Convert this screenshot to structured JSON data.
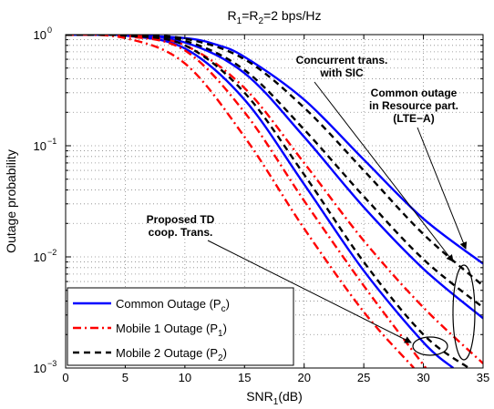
{
  "chart_data": {
    "type": "line",
    "title": "R1=R2=2 bps/Hz",
    "xlabel": "SNR1(dB)",
    "ylabel": "Outage probability",
    "xlim": [
      0,
      35
    ],
    "ylim": [
      0.001,
      1
    ],
    "yscale": "log",
    "grid": true,
    "x_ticks": [
      "0",
      "5",
      "10",
      "15",
      "20",
      "25",
      "30",
      "35"
    ],
    "y_ticks": [
      {
        "base": "10",
        "exp": "0"
      },
      {
        "base": "10",
        "exp": "−1"
      },
      {
        "base": "10",
        "exp": "−2"
      },
      {
        "base": "10",
        "exp": "−3"
      }
    ],
    "legend": {
      "placement": "bottom-left",
      "entries": [
        {
          "text": "Common Outage (P",
          "sub": "c",
          "close": ")",
          "color": "#0000ff",
          "dash": "solid"
        },
        {
          "text": "Mobile 1 Outage (P",
          "sub": "1",
          "close": ")",
          "color": "#ff0000",
          "dash": "dashdot"
        },
        {
          "text": "Mobile 2 Outage (P",
          "sub": "2",
          "close": ")",
          "color": "#000000",
          "dash": "dashed"
        }
      ]
    },
    "annotations": [
      {
        "lines": [
          "Concurrent trans.",
          "with SIC"
        ]
      },
      {
        "lines": [
          "Common outage",
          "in Resource part.",
          "(LTE−A)"
        ]
      },
      {
        "lines": [
          "Proposed TD",
          "coop. Trans."
        ]
      }
    ],
    "series": [
      {
        "group": "Common Outage",
        "scheme": "LTE-A resource partition",
        "color": "#0000ff",
        "dash": "solid",
        "x": [
          0,
          5,
          10,
          12.5,
          15,
          20,
          25,
          30,
          35
        ],
        "y": [
          1,
          0.99,
          0.93,
          0.82,
          0.63,
          0.26,
          0.075,
          0.022,
          0.0087
        ]
      },
      {
        "group": "Common Outage",
        "scheme": "Concurrent trans. with SIC",
        "color": "#0000ff",
        "dash": "solid",
        "x": [
          0,
          5,
          10,
          15,
          20,
          25,
          30,
          35
        ],
        "y": [
          1,
          0.99,
          0.85,
          0.45,
          0.12,
          0.028,
          0.0078,
          0.0028
        ]
      },
      {
        "group": "Common Outage",
        "scheme": "Proposed TD coop. Trans.",
        "color": "#0000ff",
        "dash": "solid",
        "x": [
          0,
          5,
          10,
          15,
          20,
          25,
          30,
          32.5
        ],
        "y": [
          1,
          0.98,
          0.75,
          0.26,
          0.045,
          0.0075,
          0.0017,
          0.001
        ]
      },
      {
        "group": "Mobile 1 Outage",
        "scheme": "Proposed TD coop. Trans.",
        "color": "#ff0000",
        "dash": "dashdot",
        "x": [
          0,
          5,
          10,
          15,
          20,
          25,
          29.2
        ],
        "y": [
          1,
          0.93,
          0.55,
          0.12,
          0.018,
          0.0032,
          0.001
        ]
      },
      {
        "group": "Mobile 1 Outage",
        "scheme": "Proposed TD coop. Trans. (2)",
        "color": "#ff0000",
        "dash": "dashdot",
        "x": [
          0,
          5,
          10,
          15,
          20,
          25,
          30.2
        ],
        "y": [
          1,
          0.97,
          0.72,
          0.2,
          0.032,
          0.0055,
          0.001
        ]
      },
      {
        "group": "Mobile 1 Outage",
        "scheme": "Concurrent trans. with SIC",
        "color": "#ff0000",
        "dash": "dashdot",
        "x": [
          0,
          5,
          10,
          15,
          20,
          25,
          30,
          35
        ],
        "y": [
          1,
          0.99,
          0.8,
          0.33,
          0.07,
          0.014,
          0.0035,
          0.0011
        ]
      },
      {
        "group": "Mobile 2 Outage",
        "scheme": "Proposed TD coop. Trans.",
        "color": "#000000",
        "dash": "dashed",
        "x": [
          0,
          5,
          10,
          15,
          20,
          25,
          30,
          33.8
        ],
        "y": [
          1,
          0.98,
          0.8,
          0.3,
          0.055,
          0.009,
          0.002,
          0.001
        ]
      },
      {
        "group": "Mobile 2 Outage",
        "scheme": "Concurrent trans. with SIC",
        "color": "#000000",
        "dash": "dashed",
        "x": [
          0,
          5,
          10,
          15,
          20,
          25,
          30,
          35
        ],
        "y": [
          1,
          0.99,
          0.88,
          0.48,
          0.14,
          0.035,
          0.0095,
          0.0035
        ]
      },
      {
        "group": "Mobile 2 Outage",
        "scheme": "Common resource partition",
        "color": "#000000",
        "dash": "dashed",
        "x": [
          0,
          5,
          10,
          15,
          20,
          25,
          30,
          35
        ],
        "y": [
          1,
          0.99,
          0.92,
          0.6,
          0.22,
          0.06,
          0.016,
          0.0055
        ]
      }
    ]
  }
}
